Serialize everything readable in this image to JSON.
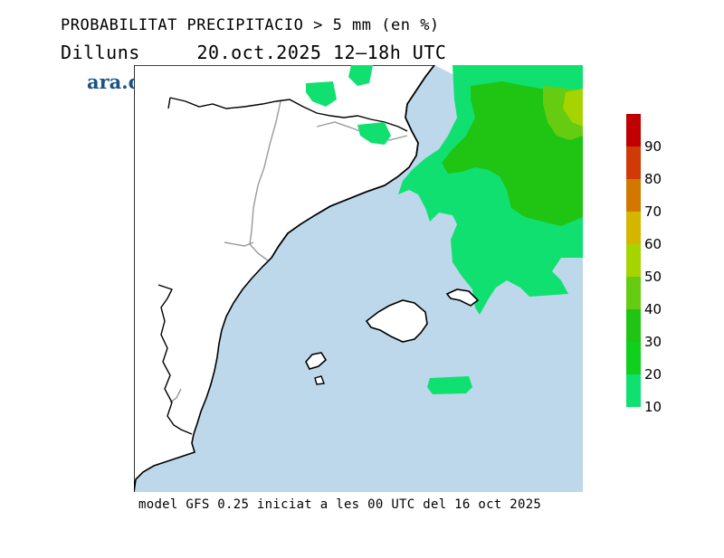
{
  "title_line1": "PROBABILITAT PRECIPITACIO > 5 mm (en %)",
  "day": "Dilluns",
  "date_time": "20.oct.2025 12–18h UTC",
  "logo": "ara.cat",
  "footer": "model GFS 0.25 iniciat a les 00 UTC del 16 oct 2025",
  "colors": {
    "sea": "#bcd8ea",
    "land": "#ffffff",
    "coast": "#000000",
    "border": "#9a9a9a"
  },
  "legend": {
    "ticks": [
      "90",
      "80",
      "70",
      "60",
      "50",
      "40",
      "30",
      "20",
      "10"
    ],
    "bands": [
      {
        "from": 90,
        "to": 100,
        "color": "#c00000"
      },
      {
        "from": 80,
        "to": 90,
        "color": "#d03a06"
      },
      {
        "from": 70,
        "to": 80,
        "color": "#d27800"
      },
      {
        "from": 60,
        "to": 70,
        "color": "#d4b600"
      },
      {
        "from": 50,
        "to": 60,
        "color": "#a6d400"
      },
      {
        "from": 40,
        "to": 50,
        "color": "#66cc12"
      },
      {
        "from": 30,
        "to": 40,
        "color": "#20c412"
      },
      {
        "from": 20,
        "to": 30,
        "color": "#10d01e"
      },
      {
        "from": 10,
        "to": 20,
        "color": "#10e070"
      }
    ]
  }
}
